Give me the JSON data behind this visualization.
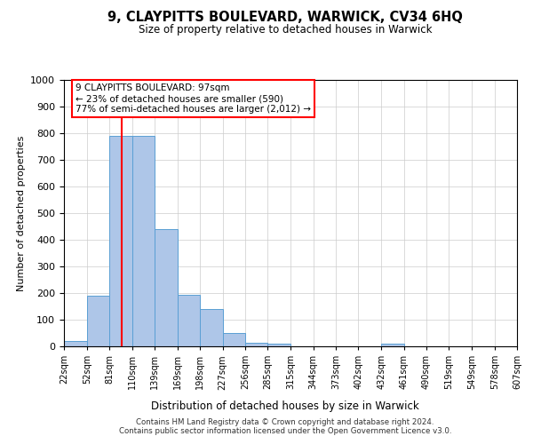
{
  "title": "9, CLAYPITTS BOULEVARD, WARWICK, CV34 6HQ",
  "subtitle": "Size of property relative to detached houses in Warwick",
  "xlabel": "Distribution of detached houses by size in Warwick",
  "ylabel": "Number of detached properties",
  "bin_edges": [
    22,
    52,
    81,
    110,
    139,
    169,
    198,
    227,
    256,
    285,
    315,
    344,
    373,
    402,
    432,
    461,
    490,
    519,
    549,
    578,
    607
  ],
  "bin_labels": [
    "22sqm",
    "52sqm",
    "81sqm",
    "110sqm",
    "139sqm",
    "169sqm",
    "198sqm",
    "227sqm",
    "256sqm",
    "285sqm",
    "315sqm",
    "344sqm",
    "373sqm",
    "402sqm",
    "432sqm",
    "461sqm",
    "490sqm",
    "519sqm",
    "549sqm",
    "578sqm",
    "607sqm"
  ],
  "counts": [
    20,
    190,
    790,
    790,
    440,
    195,
    140,
    50,
    15,
    10,
    0,
    0,
    0,
    0,
    10,
    0,
    0,
    0,
    0,
    0
  ],
  "bar_color": "#aec6e8",
  "bar_edge_color": "#5a9fd4",
  "vline_x": 97,
  "vline_color": "red",
  "ylim": [
    0,
    1000
  ],
  "yticks": [
    0,
    100,
    200,
    300,
    400,
    500,
    600,
    700,
    800,
    900,
    1000
  ],
  "annotation_title": "9 CLAYPITTS BOULEVARD: 97sqm",
  "annotation_line1": "← 23% of detached houses are smaller (590)",
  "annotation_line2": "77% of semi-detached houses are larger (2,012) →",
  "annotation_box_color": "white",
  "annotation_box_edge": "red",
  "footer1": "Contains HM Land Registry data © Crown copyright and database right 2024.",
  "footer2": "Contains public sector information licensed under the Open Government Licence v3.0.",
  "bg_color": "white",
  "grid_color": "#cccccc"
}
